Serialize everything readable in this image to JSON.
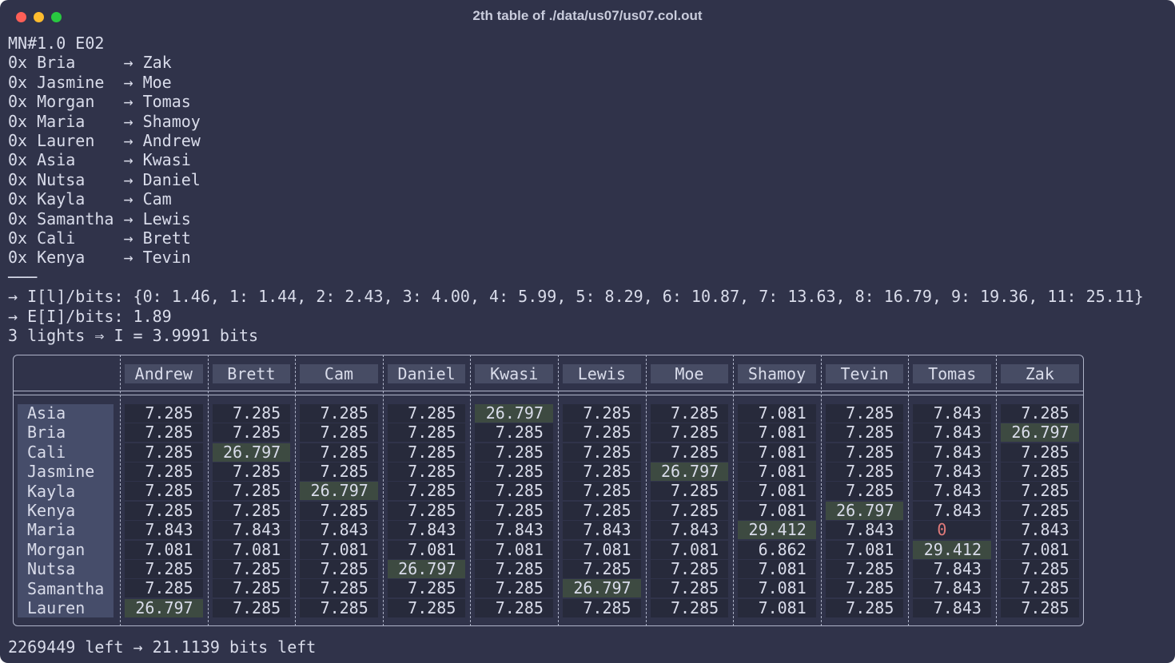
{
  "window": {
    "title": "2th table of ./data/us07/us07.col.out"
  },
  "terminal": {
    "lines": [
      "MN#1.0 E02",
      "0x Bria     → Zak",
      "0x Jasmine  → Moe",
      "0x Morgan   → Tomas",
      "0x Maria    → Shamoy",
      "0x Lauren   → Andrew",
      "0x Asia     → Kwasi",
      "0x Nutsa    → Daniel",
      "0x Kayla    → Cam",
      "0x Samantha → Lewis",
      "0x Cali     → Brett",
      "0x Kenya    → Tevin",
      "───",
      "→ I[l]/bits: {0: 1.46, 1: 1.44, 2: 2.43, 3: 4.00, 4: 5.99, 5: 8.29, 6: 10.87, 7: 13.63, 8: 16.79, 9: 19.36, 11: 25.11}",
      "→ E[I]/bits: 1.89",
      "3 lights ⇒ I = 3.9991 bits"
    ],
    "footer": "2269449 left → 21.1139 bits left"
  },
  "table": {
    "columns": [
      "Andrew",
      "Brett",
      "Cam",
      "Daniel",
      "Kwasi",
      "Lewis",
      "Moe",
      "Shamoy",
      "Tevin",
      "Tomas",
      "Zak"
    ],
    "rows": [
      {
        "name": "Asia",
        "highlight": 4,
        "cells": [
          7.285,
          7.285,
          7.285,
          7.285,
          26.797,
          7.285,
          7.285,
          7.081,
          7.285,
          7.843,
          7.285
        ]
      },
      {
        "name": "Bria",
        "highlight": 10,
        "cells": [
          7.285,
          7.285,
          7.285,
          7.285,
          7.285,
          7.285,
          7.285,
          7.081,
          7.285,
          7.843,
          26.797
        ]
      },
      {
        "name": "Cali",
        "highlight": 1,
        "cells": [
          7.285,
          26.797,
          7.285,
          7.285,
          7.285,
          7.285,
          7.285,
          7.081,
          7.285,
          7.843,
          7.285
        ]
      },
      {
        "name": "Jasmine",
        "highlight": 6,
        "cells": [
          7.285,
          7.285,
          7.285,
          7.285,
          7.285,
          7.285,
          26.797,
          7.081,
          7.285,
          7.843,
          7.285
        ]
      },
      {
        "name": "Kayla",
        "highlight": 2,
        "cells": [
          7.285,
          7.285,
          26.797,
          7.285,
          7.285,
          7.285,
          7.285,
          7.081,
          7.285,
          7.843,
          7.285
        ]
      },
      {
        "name": "Kenya",
        "highlight": 8,
        "cells": [
          7.285,
          7.285,
          7.285,
          7.285,
          7.285,
          7.285,
          7.285,
          7.081,
          26.797,
          7.843,
          7.285
        ]
      },
      {
        "name": "Maria",
        "highlight": 7,
        "cells": [
          7.843,
          7.843,
          7.843,
          7.843,
          7.843,
          7.843,
          7.843,
          29.412,
          7.843,
          0,
          7.843
        ]
      },
      {
        "name": "Morgan",
        "highlight": 9,
        "cells": [
          7.081,
          7.081,
          7.081,
          7.081,
          7.081,
          7.081,
          7.081,
          6.862,
          7.081,
          29.412,
          7.081
        ]
      },
      {
        "name": "Nutsa",
        "highlight": 3,
        "cells": [
          7.285,
          7.285,
          7.285,
          26.797,
          7.285,
          7.285,
          7.285,
          7.081,
          7.285,
          7.843,
          7.285
        ]
      },
      {
        "name": "Samantha",
        "highlight": 5,
        "cells": [
          7.285,
          7.285,
          7.285,
          7.285,
          7.285,
          26.797,
          7.285,
          7.081,
          7.285,
          7.843,
          7.285
        ]
      },
      {
        "name": "Lauren",
        "highlight": 0,
        "cells": [
          26.797,
          7.285,
          7.285,
          7.285,
          7.285,
          7.285,
          7.285,
          7.081,
          7.285,
          7.843,
          7.285
        ]
      }
    ]
  }
}
